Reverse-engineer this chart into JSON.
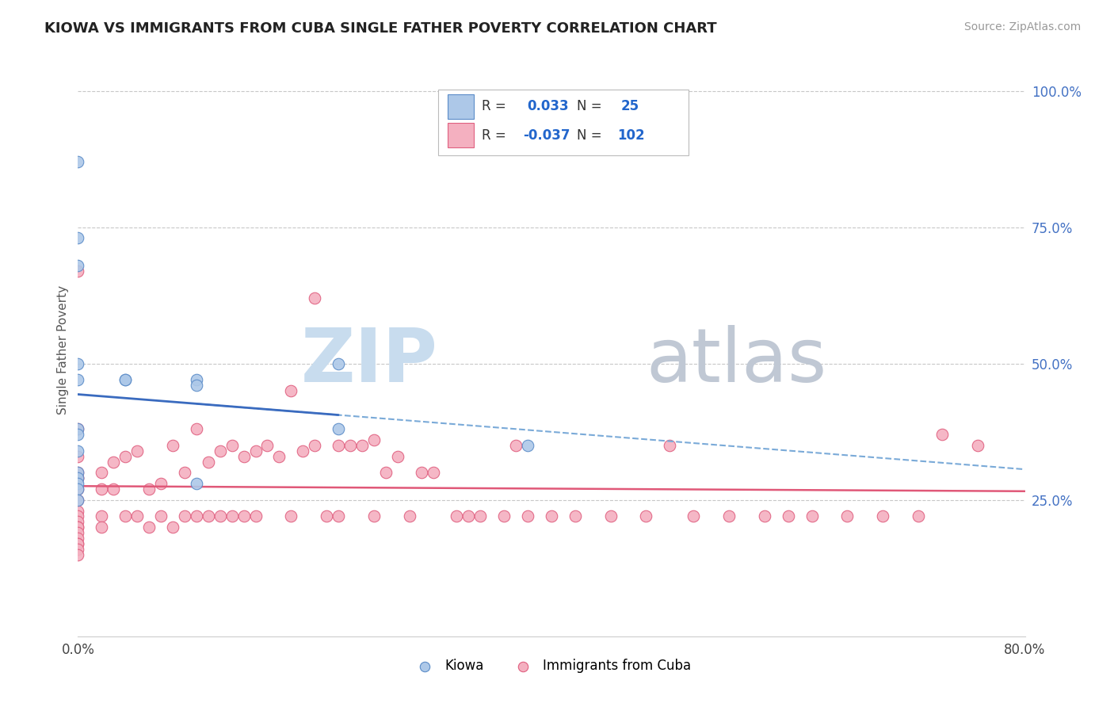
{
  "title": "KIOWA VS IMMIGRANTS FROM CUBA SINGLE FATHER POVERTY CORRELATION CHART",
  "source": "Source: ZipAtlas.com",
  "ylabel": "Single Father Poverty",
  "right_yticks": [
    "100.0%",
    "75.0%",
    "50.0%",
    "25.0%"
  ],
  "right_ytick_vals": [
    1.0,
    0.75,
    0.5,
    0.25
  ],
  "kiowa_scatter_color": "#adc8e8",
  "kiowa_scatter_edge": "#5b8cc8",
  "cuba_scatter_color": "#f4b0c0",
  "cuba_scatter_edge": "#e06080",
  "kiowa_line_color": "#3a6bbf",
  "cuba_line_color": "#e05878",
  "dashed_line_color": "#7aaad8",
  "grid_color": "#c8c8c8",
  "watermark_zip_color": "#c8dcee",
  "watermark_atlas_color": "#c0c8d4",
  "xlim": [
    0.0,
    0.8
  ],
  "ylim": [
    0.0,
    1.05
  ],
  "kiowa_x": [
    0.0,
    0.0,
    0.0,
    0.0,
    0.0,
    0.0,
    0.0,
    0.0,
    0.0,
    0.0,
    0.0,
    0.0,
    0.0,
    0.04,
    0.04,
    0.1,
    0.1,
    0.1,
    0.22,
    0.22,
    0.38
  ],
  "kiowa_y": [
    0.87,
    0.73,
    0.68,
    0.5,
    0.47,
    0.38,
    0.37,
    0.34,
    0.3,
    0.29,
    0.28,
    0.27,
    0.25,
    0.47,
    0.47,
    0.47,
    0.46,
    0.28,
    0.5,
    0.38,
    0.35
  ],
  "cuba_x": [
    0.0,
    0.0,
    0.0,
    0.0,
    0.0,
    0.0,
    0.0,
    0.0,
    0.0,
    0.0,
    0.0,
    0.0,
    0.0,
    0.0,
    0.0,
    0.0,
    0.0,
    0.0,
    0.0,
    0.02,
    0.02,
    0.02,
    0.02,
    0.03,
    0.03,
    0.04,
    0.04,
    0.05,
    0.05,
    0.06,
    0.06,
    0.07,
    0.07,
    0.08,
    0.08,
    0.09,
    0.09,
    0.1,
    0.1,
    0.11,
    0.11,
    0.12,
    0.12,
    0.13,
    0.13,
    0.14,
    0.14,
    0.15,
    0.15,
    0.16,
    0.17,
    0.18,
    0.18,
    0.19,
    0.2,
    0.2,
    0.21,
    0.22,
    0.22,
    0.23,
    0.24,
    0.25,
    0.25,
    0.26,
    0.27,
    0.28,
    0.29,
    0.3,
    0.32,
    0.33,
    0.34,
    0.36,
    0.37,
    0.38,
    0.4,
    0.42,
    0.45,
    0.48,
    0.5,
    0.52,
    0.55,
    0.58,
    0.6,
    0.62,
    0.65,
    0.68,
    0.71,
    0.73,
    0.76
  ],
  "cuba_y": [
    0.67,
    0.38,
    0.33,
    0.3,
    0.29,
    0.29,
    0.27,
    0.25,
    0.23,
    0.22,
    0.21,
    0.2,
    0.2,
    0.19,
    0.18,
    0.17,
    0.17,
    0.16,
    0.15,
    0.3,
    0.27,
    0.22,
    0.2,
    0.32,
    0.27,
    0.33,
    0.22,
    0.34,
    0.22,
    0.27,
    0.2,
    0.28,
    0.22,
    0.35,
    0.2,
    0.3,
    0.22,
    0.38,
    0.22,
    0.32,
    0.22,
    0.34,
    0.22,
    0.35,
    0.22,
    0.33,
    0.22,
    0.34,
    0.22,
    0.35,
    0.33,
    0.45,
    0.22,
    0.34,
    0.62,
    0.35,
    0.22,
    0.35,
    0.22,
    0.35,
    0.35,
    0.36,
    0.22,
    0.3,
    0.33,
    0.22,
    0.3,
    0.3,
    0.22,
    0.22,
    0.22,
    0.22,
    0.35,
    0.22,
    0.22,
    0.22,
    0.22,
    0.22,
    0.35,
    0.22,
    0.22,
    0.22,
    0.22,
    0.22,
    0.22,
    0.22,
    0.22,
    0.37,
    0.35
  ]
}
